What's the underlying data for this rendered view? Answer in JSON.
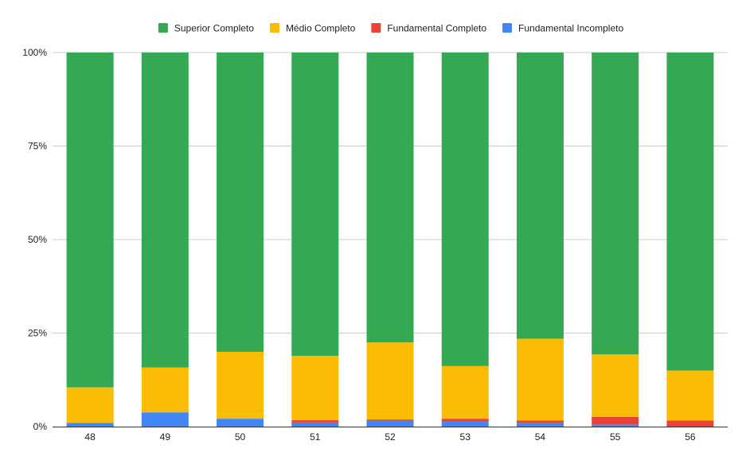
{
  "chart_data": {
    "type": "bar",
    "stacked": "percent",
    "categories": [
      "48",
      "49",
      "50",
      "51",
      "52",
      "53",
      "54",
      "55",
      "56"
    ],
    "series": [
      {
        "name": "Fundamental Incompleto",
        "color": "#4285f4",
        "values": [
          1.0,
          3.8,
          2.1,
          1.1,
          1.6,
          1.3,
          0.9,
          0.6,
          0.0
        ]
      },
      {
        "name": "Fundamental Completo",
        "color": "#ea4335",
        "values": [
          0.0,
          0.0,
          0.0,
          0.6,
          0.3,
          0.8,
          0.7,
          2.0,
          1.6
        ]
      },
      {
        "name": "Médio Completo",
        "color": "#fbbc04",
        "values": [
          9.5,
          12.0,
          17.9,
          17.2,
          20.6,
          14.1,
          21.9,
          16.7,
          13.4
        ]
      },
      {
        "name": "Superior Completo",
        "color": "#34a853",
        "values": [
          89.5,
          84.2,
          80.0,
          81.1,
          77.5,
          83.8,
          76.5,
          80.7,
          85.0
        ]
      }
    ],
    "legend_order": [
      "Superior Completo",
      "Médio Completo",
      "Fundamental Completo",
      "Fundamental Incompleto"
    ],
    "y_ticks": [
      "0%",
      "25%",
      "50%",
      "75%",
      "100%"
    ],
    "ylim": [
      0,
      100
    ],
    "grid": true,
    "legend_position": "top"
  }
}
